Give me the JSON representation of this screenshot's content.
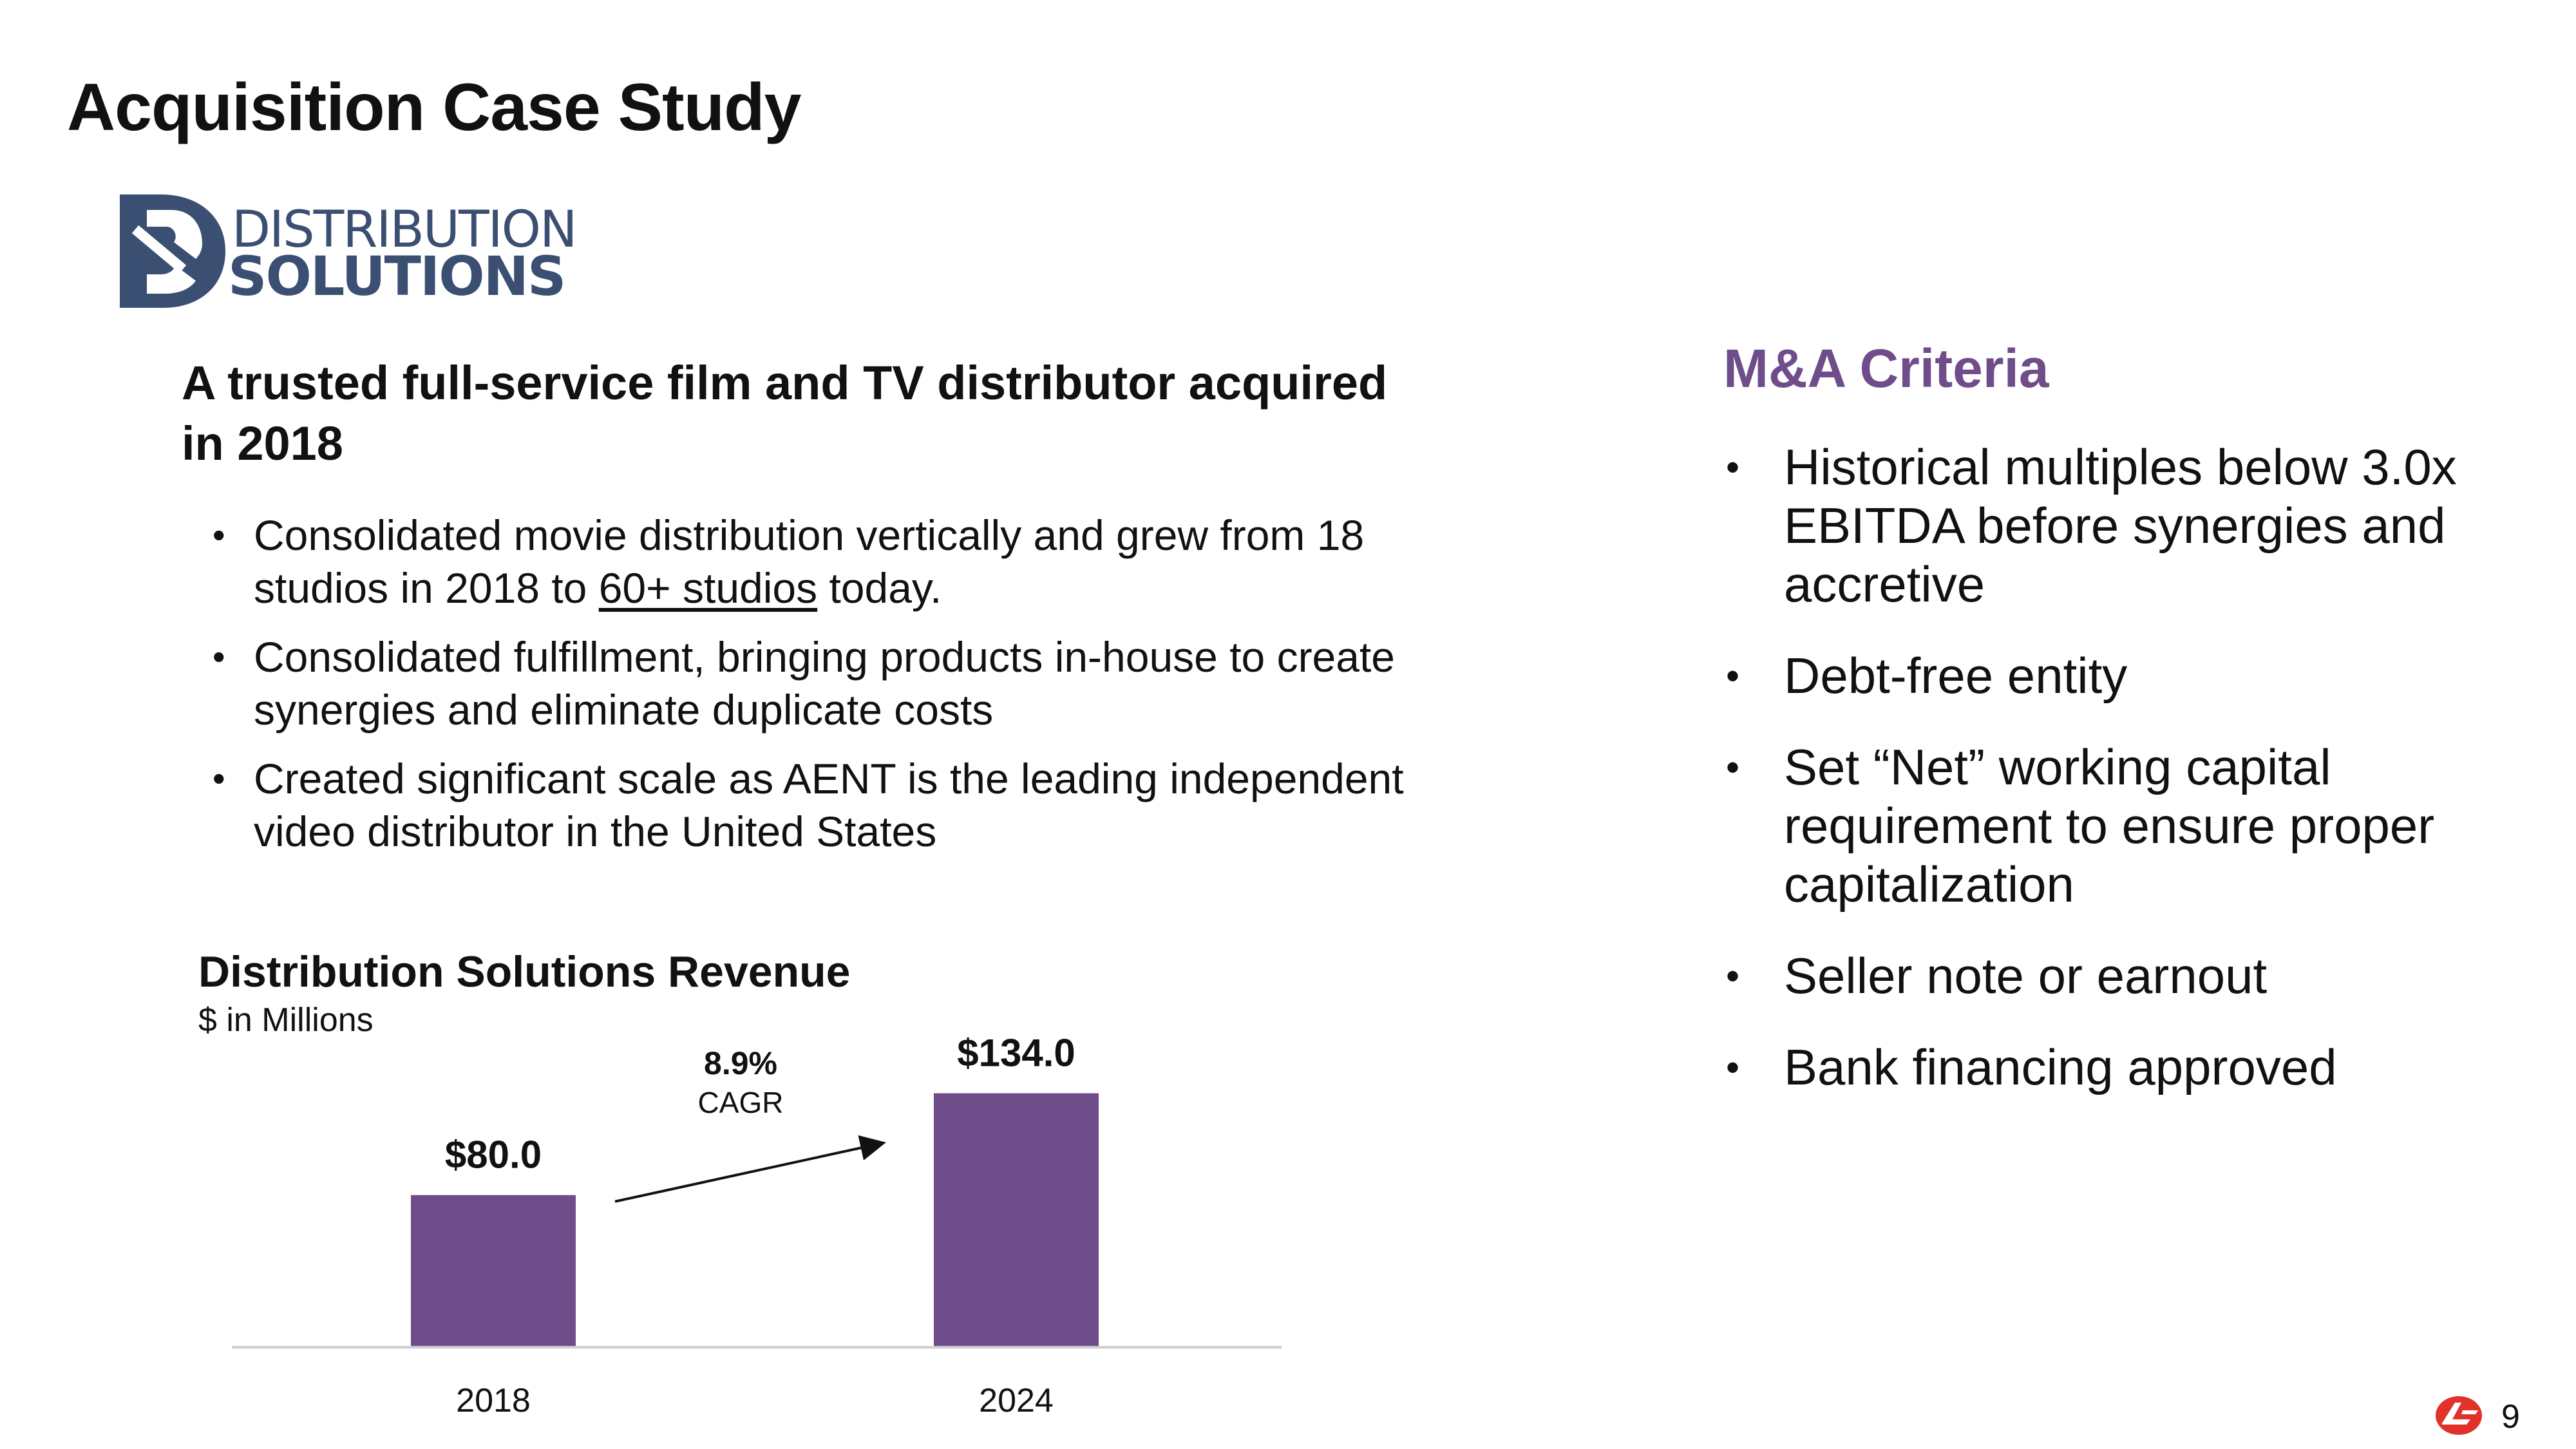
{
  "slide": {
    "title": "Acquisition Case Study",
    "page_number": "9"
  },
  "logo": {
    "line1": "DISTRIBUTION",
    "line2": "SOLUTIONS",
    "color": "#3b4f73"
  },
  "left": {
    "headline": "A trusted full-service film and TV distributor acquired in 2018",
    "bullets": [
      {
        "pre": "Consolidated movie distribution vertically and grew from 18 studios in 2018 to ",
        "link": "60+ studios",
        "post": " today."
      },
      {
        "text": "Consolidated fulfillment, bringing products in-house to create synergies and eliminate duplicate costs"
      },
      {
        "text": "Created significant scale as AENT is the leading independent video distributor in the United States"
      }
    ]
  },
  "chart_data": {
    "type": "bar",
    "title": "Distribution Solutions Revenue",
    "subtitle": "$ in Millions",
    "categories": [
      "2018",
      "2024"
    ],
    "values": [
      80.0,
      134.0
    ],
    "value_labels": [
      "$80.0",
      "$134.0"
    ],
    "annotation": {
      "value": "8.9%",
      "label": "CAGR"
    },
    "bar_color": "#6f4d8b",
    "ylim": [
      0,
      140
    ],
    "grid": false
  },
  "right": {
    "title": "M&A Criteria",
    "title_color": "#6f4d8b",
    "criteria": [
      "Historical multiples below 3.0x EBITDA before synergies and accretive",
      "Debt-free entity",
      "Set “Net” working capital requirement to ensure proper capitalization",
      "Seller note or earnout",
      "Bank financing approved"
    ]
  }
}
